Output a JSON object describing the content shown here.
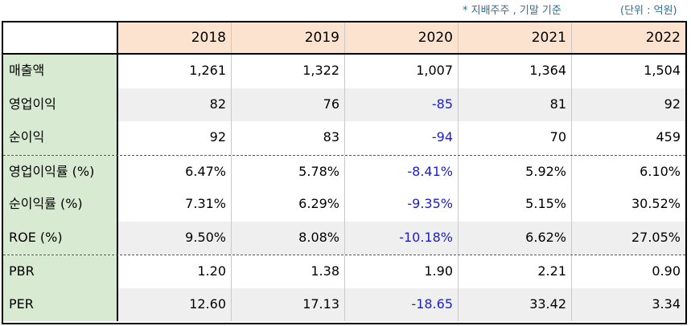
{
  "notes": {
    "basis": "* 지배주주 , 기말 기준",
    "unit": "(단위 : 억원)"
  },
  "colors": {
    "header_bg": "#fbe3cf",
    "label_bg": "#d9ead3",
    "shade_bg": "#efefef",
    "negative": "#1c1cd1"
  },
  "table": {
    "years": [
      "2018",
      "2019",
      "2020",
      "2021",
      "2022"
    ],
    "rows": [
      {
        "label": "매출액",
        "values": [
          "1,261",
          "1,322",
          "1,007",
          "1,364",
          "1,504"
        ]
      },
      {
        "label": "영업이익",
        "values": [
          "82",
          "76",
          "-85",
          "81",
          "92"
        ]
      },
      {
        "label": "순이익",
        "values": [
          "92",
          "83",
          "-94",
          "70",
          "459"
        ]
      },
      {
        "label": "영업이익률 (%)",
        "values": [
          "6.47%",
          "5.78%",
          "-8.41%",
          "5.92%",
          "6.10%"
        ]
      },
      {
        "label": "순이익률 (%)",
        "values": [
          "7.31%",
          "6.29%",
          "-9.35%",
          "5.15%",
          "30.52%"
        ]
      },
      {
        "label": "ROE (%)",
        "values": [
          "9.50%",
          "8.08%",
          "-10.18%",
          "6.62%",
          "27.05%"
        ]
      },
      {
        "label": "PBR",
        "values": [
          "1.20",
          "1.38",
          "1.90",
          "2.21",
          "0.90"
        ]
      },
      {
        "label": "PER",
        "values": [
          "12.60",
          "17.13",
          "-18.65",
          "33.42",
          "3.34"
        ]
      }
    ]
  }
}
